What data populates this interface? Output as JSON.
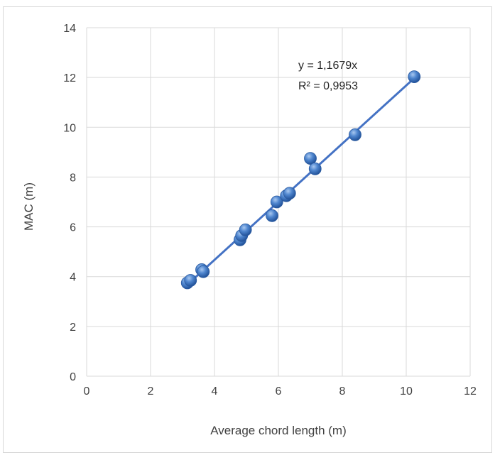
{
  "chart_data": {
    "type": "scatter",
    "title": "",
    "xlabel": "Average chord length (m)",
    "ylabel": "MAC (m)",
    "xlim": [
      0,
      12
    ],
    "ylim": [
      0,
      14
    ],
    "x_ticks": [
      "0",
      "2",
      "4",
      "6",
      "8",
      "10",
      "12"
    ],
    "y_ticks": [
      "0",
      "2",
      "4",
      "6",
      "8",
      "10",
      "12",
      "14"
    ],
    "grid": true,
    "legend": "none",
    "marker_color": "#4a7fc6",
    "trendline_color": "#4472c4",
    "series": [
      {
        "points": [
          [
            3.15,
            3.75
          ],
          [
            3.25,
            3.85
          ],
          [
            3.6,
            4.28
          ],
          [
            3.65,
            4.2
          ],
          [
            4.8,
            5.48
          ],
          [
            4.85,
            5.65
          ],
          [
            4.97,
            5.88
          ],
          [
            5.8,
            6.45
          ],
          [
            5.95,
            7.0
          ],
          [
            6.25,
            7.25
          ],
          [
            6.35,
            7.35
          ],
          [
            7.0,
            8.75
          ],
          [
            7.15,
            8.33
          ],
          [
            8.4,
            9.7
          ],
          [
            10.25,
            12.03
          ]
        ]
      }
    ],
    "trendline": {
      "slope": 1.1679,
      "x_range": [
        3.2,
        10.3
      ],
      "equation_label": "y = 1,1679x",
      "r2_label": "R² = 0,9953"
    }
  }
}
